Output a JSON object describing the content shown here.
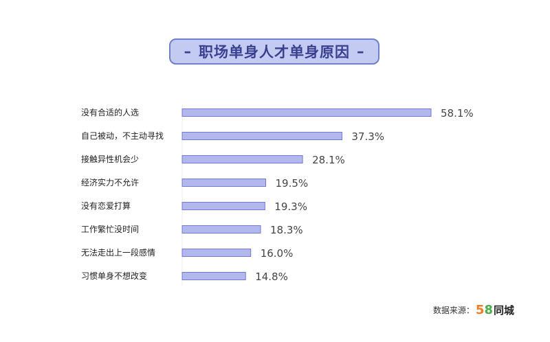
{
  "chart_data": {
    "type": "bar",
    "orientation": "horizontal",
    "title": "职场单身人才单身原因",
    "categories": [
      "没有合适的人选",
      "自己被动，不主动寻找",
      "接触异性机会少",
      "经济实力不允许",
      "没有恋爱打算",
      "工作繁忙没时间",
      "无法走出上一段感情",
      "习惯单身不想改变"
    ],
    "values": [
      58.1,
      37.3,
      28.1,
      19.5,
      19.3,
      18.3,
      16.0,
      14.8
    ],
    "value_labels": [
      "58.1%",
      "37.3%",
      "28.1%",
      "19.5%",
      "19.3%",
      "18.3%",
      "16.0%",
      "14.8%"
    ],
    "xlim": [
      0,
      58.1
    ],
    "grid": false,
    "legend": "none",
    "colors": {
      "bar_fill": "#b2b8ec",
      "bar_stroke": "#6f78d2",
      "title_bg": "#c3cbf3",
      "title_text": "#3a3f8f"
    }
  },
  "source": {
    "label": "数据来源：",
    "logo_5": "5",
    "logo_8": "8",
    "logo_text": "同城"
  }
}
